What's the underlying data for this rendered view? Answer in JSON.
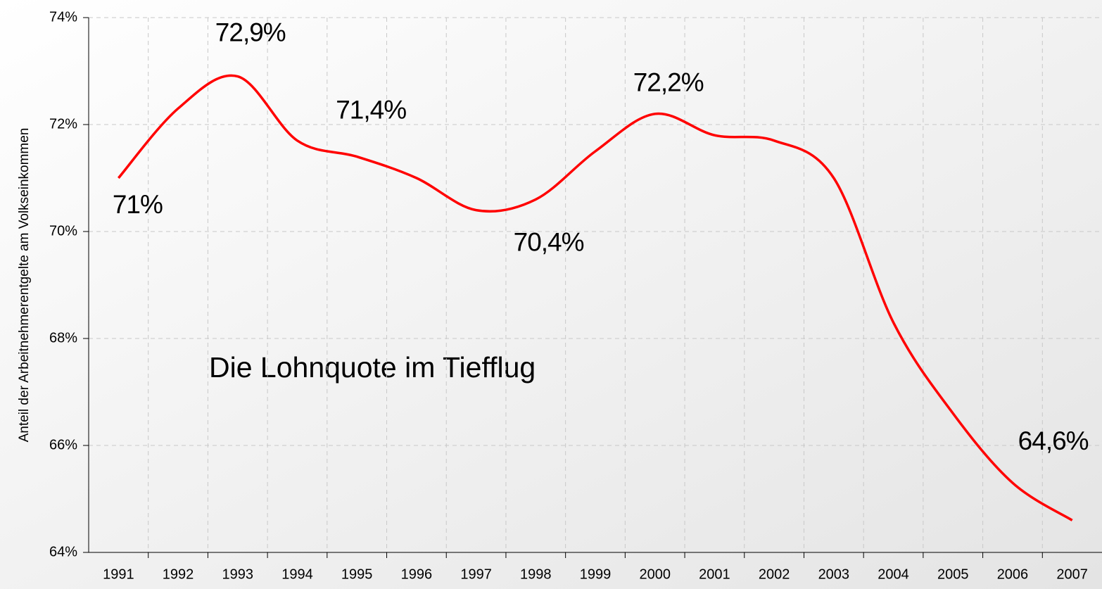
{
  "chart_data": {
    "type": "line",
    "y_axis_label": "Anteil der Arbeitnehmerentgelte am Volkseinkommen",
    "annotation": "Die Lohnquote im Tiefflug",
    "categories": [
      "1991",
      "1992",
      "1993",
      "1994",
      "1995",
      "1996",
      "1997",
      "1998",
      "1999",
      "2000",
      "2001",
      "2002",
      "2003",
      "2004",
      "2005",
      "2006",
      "2007"
    ],
    "series": [
      {
        "name": "Lohnquote",
        "color": "#ff0000",
        "values": [
          71.0,
          72.3,
          72.9,
          71.7,
          71.4,
          71.0,
          70.4,
          70.6,
          71.5,
          72.2,
          71.8,
          71.7,
          71.0,
          68.3,
          66.6,
          65.3,
          64.6
        ],
        "value_labels": [
          "71%",
          null,
          "72,9%",
          null,
          "71,4%",
          null,
          "70,4%",
          null,
          null,
          "72,2%",
          null,
          null,
          null,
          null,
          null,
          null,
          "64,6%"
        ]
      }
    ],
    "ylim": [
      64,
      74
    ],
    "yticks": [
      {
        "value": 64,
        "label": "64%"
      },
      {
        "value": 66,
        "label": "66%"
      },
      {
        "value": 68,
        "label": "68%"
      },
      {
        "value": 70,
        "label": "70%"
      },
      {
        "value": 72,
        "label": "72%"
      },
      {
        "value": 74,
        "label": "74%"
      }
    ],
    "grid": true
  }
}
